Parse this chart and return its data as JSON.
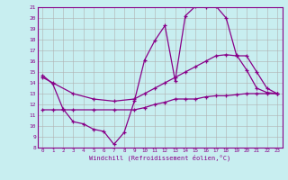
{
  "xlabel": "Windchill (Refroidissement éolien,°C)",
  "bg_color": "#c8eef0",
  "grid_color": "#b0b0b0",
  "line_color": "#880088",
  "xlim": [
    -0.5,
    23.5
  ],
  "ylim": [
    8,
    21
  ],
  "xticks": [
    0,
    1,
    2,
    3,
    4,
    5,
    6,
    7,
    8,
    9,
    10,
    11,
    12,
    13,
    14,
    15,
    16,
    17,
    18,
    19,
    20,
    21,
    22,
    23
  ],
  "yticks": [
    8,
    9,
    10,
    11,
    12,
    13,
    14,
    15,
    16,
    17,
    18,
    19,
    20,
    21
  ],
  "series": [
    {
      "x": [
        0,
        1,
        2,
        3,
        4,
        5,
        6,
        7,
        8,
        9,
        10,
        11,
        12,
        13,
        14,
        15,
        16,
        17,
        18,
        19,
        20,
        21,
        22,
        23
      ],
      "y": [
        14.7,
        13.9,
        11.6,
        10.4,
        10.2,
        9.7,
        9.5,
        8.3,
        9.4,
        12.3,
        16.1,
        17.9,
        19.3,
        14.2,
        20.2,
        21.1,
        21.0,
        21.1,
        20.0,
        16.6,
        15.2,
        13.5,
        13.1,
        13.0
      ]
    },
    {
      "x": [
        0,
        1,
        3,
        5,
        7,
        9,
        10,
        11,
        12,
        13,
        14,
        15,
        16,
        17,
        18,
        19,
        20,
        21,
        22,
        23
      ],
      "y": [
        14.5,
        14.0,
        13.0,
        12.5,
        12.3,
        12.5,
        13.0,
        13.5,
        14.0,
        14.5,
        15.0,
        15.5,
        16.0,
        16.5,
        16.6,
        16.5,
        16.5,
        15.0,
        13.5,
        13.0
      ]
    },
    {
      "x": [
        0,
        1,
        2,
        3,
        5,
        7,
        9,
        10,
        11,
        12,
        13,
        14,
        15,
        16,
        17,
        18,
        19,
        20,
        21,
        22,
        23
      ],
      "y": [
        11.5,
        11.5,
        11.5,
        11.5,
        11.5,
        11.5,
        11.5,
        11.7,
        12.0,
        12.2,
        12.5,
        12.5,
        12.5,
        12.7,
        12.8,
        12.8,
        12.9,
        13.0,
        13.0,
        13.0,
        13.0
      ]
    }
  ]
}
